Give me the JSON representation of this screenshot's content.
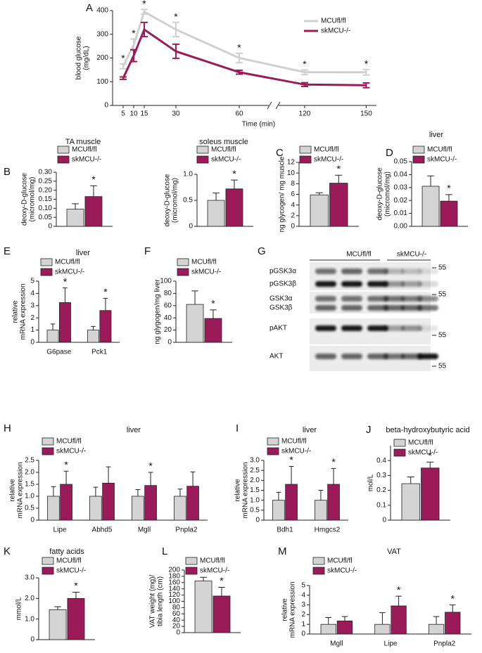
{
  "chart_data": [
    {
      "type": "line",
      "panel": "A",
      "y_label": [
        "blood glucose",
        "(mg/dL)"
      ],
      "x_label": "Time (min)",
      "x": [
        5,
        10,
        15,
        30,
        60,
        120,
        150
      ],
      "xlim": [
        0,
        155
      ],
      "xticks": [
        5,
        10,
        15,
        30,
        60,
        120,
        150
      ],
      "xbreak": [
        60,
        120
      ],
      "ylim": [
        0,
        400
      ],
      "yticks": [
        0,
        100,
        200,
        300,
        400
      ],
      "series": [
        {
          "name": "MCUfl/fl",
          "color": "#d0d0d0",
          "values": [
            165,
            255,
            395,
            320,
            200,
            140,
            140
          ],
          "errors": [
            10,
            25,
            10,
            30,
            20,
            10,
            12
          ]
        },
        {
          "name": "skMCU-/-",
          "color": "#9b1b5a",
          "values": [
            115,
            210,
            320,
            228,
            140,
            88,
            85
          ],
          "errors": [
            5,
            25,
            30,
            30,
            8,
            8,
            10
          ]
        }
      ],
      "significance": [
        "*",
        "*",
        "*",
        "*",
        "*",
        "*",
        "*"
      ]
    },
    {
      "type": "bar",
      "panel": "B",
      "title": "TA muscle",
      "y_label": [
        "deoxy-D-glucose",
        "(micromol/mg)"
      ],
      "categories": [
        null
      ],
      "ylim": [
        0,
        0.3
      ],
      "yticks": [
        0,
        0.05,
        {
          "value": 0.1,
          "label": "0.10"
        },
        0.15,
        {
          "value": 0.2,
          "label": "0.20"
        },
        0.25,
        {
          "value": 0.3,
          "label": "0.30"
        }
      ],
      "series": [
        {
          "name": "MCUfl/fl",
          "color": "#d4d4d4",
          "values": [
            0.095
          ],
          "errors": [
            0.03
          ]
        },
        {
          "name": "skMCU-/-",
          "color": "#9b1b5a",
          "values": [
            0.165
          ],
          "errors": [
            0.06
          ]
        }
      ],
      "significance": [
        "*"
      ]
    },
    {
      "type": "bar",
      "title": "soleus muscle",
      "y_label": [
        "deoxy-D-glucose",
        "(micromol/mg)"
      ],
      "categories": [
        null
      ],
      "ylim": [
        0,
        1
      ],
      "yticks": [
        0,
        0.5,
        {
          "value": 1,
          "label": "1.0"
        }
      ],
      "series": [
        {
          "name": "MCUfl/fl",
          "color": "#d4d4d4",
          "values": [
            0.5
          ],
          "errors": [
            0.14
          ]
        },
        {
          "name": "skMCU-/-",
          "color": "#9b1b5a",
          "values": [
            0.72
          ],
          "errors": [
            0.17
          ]
        }
      ],
      "significance": [
        "*"
      ]
    },
    {
      "type": "bar",
      "panel": "C",
      "y_label": "ng glycogen/ mg muscle",
      "categories": [
        null
      ],
      "ylim": [
        0,
        12
      ],
      "yticks": [
        0,
        2,
        4,
        6,
        8,
        10,
        12
      ],
      "series": [
        {
          "name": "MCUfl/fl",
          "color": "#d4d4d4",
          "values": [
            5.9
          ],
          "errors": [
            0.4
          ]
        },
        {
          "name": "skMCU-/-",
          "color": "#9b1b5a",
          "values": [
            8.1
          ],
          "errors": [
            1.5
          ]
        }
      ],
      "significance": [
        "*"
      ]
    },
    {
      "type": "bar",
      "panel": "D",
      "title": "liver",
      "y_label": [
        "deoxy-D-glucose",
        "(micromol/mg)"
      ],
      "categories": [
        null
      ],
      "ylim": [
        0,
        0.05
      ],
      "yticks": [
        {
          "value": 0,
          "label": "0.00"
        },
        0.01,
        0.02,
        0.03,
        0.04,
        0.05
      ],
      "series": [
        {
          "name": "MCUfl/fl",
          "color": "#d4d4d4",
          "values": [
            0.031
          ],
          "errors": [
            0.008
          ]
        },
        {
          "name": "skMCU-/-",
          "color": "#9b1b5a",
          "values": [
            0.0195
          ],
          "errors": [
            0.005
          ]
        }
      ],
      "significance": [
        "*"
      ]
    },
    {
      "type": "bar",
      "panel": "E",
      "title": "liver",
      "y_label": [
        "relative",
        "mRNA expression"
      ],
      "categories": [
        "G6pase",
        "Pck1"
      ],
      "ylim": [
        0,
        5
      ],
      "yticks": [
        0,
        1,
        2,
        3,
        4,
        5
      ],
      "series": [
        {
          "name": "MCUfl/fl",
          "color": "#d4d4d4",
          "values": [
            1,
            1
          ],
          "errors": [
            0.5,
            0.3
          ]
        },
        {
          "name": "skMCU-/-",
          "color": "#9b1b5a",
          "values": [
            3.25,
            2.6
          ],
          "errors": [
            1.2,
            1.0
          ]
        }
      ],
      "significance": [
        "*",
        "*"
      ]
    },
    {
      "type": "bar",
      "panel": "F",
      "y_label": "ng glygogen/mg liver",
      "categories": [
        null
      ],
      "ylim": [
        0,
        100
      ],
      "yticks": [
        0,
        20,
        40,
        60,
        80,
        100
      ],
      "series": [
        {
          "name": "MCUfl/fl",
          "color": "#d4d4d4",
          "values": [
            62
          ],
          "errors": [
            22
          ]
        },
        {
          "name": "skMCU-/-",
          "color": "#9b1b5a",
          "values": [
            39
          ],
          "errors": [
            14
          ]
        }
      ],
      "significance": [
        "*"
      ]
    },
    {
      "type": "bar",
      "panel": "H",
      "title": "liver",
      "y_label": [
        "relative",
        "mRNA expression"
      ],
      "categories": [
        "Lipe",
        "Abhd5",
        "Mgll",
        "Pnpla2"
      ],
      "ylim": [
        0,
        2.5
      ],
      "yticks": [
        0,
        0.5,
        {
          "value": 1,
          "label": "1.0"
        },
        1.5,
        {
          "value": 2,
          "label": "2.0"
        },
        2.5
      ],
      "series": [
        {
          "name": "MCUfl/fl",
          "color": "#d4d4d4",
          "values": [
            1,
            1,
            1,
            1
          ],
          "errors": [
            0.4,
            0.38,
            0.28,
            0.3
          ]
        },
        {
          "name": "skMCU-/-",
          "color": "#9b1b5a",
          "values": [
            1.5,
            1.55,
            1.45,
            1.42
          ],
          "errors": [
            0.55,
            0.68,
            0.55,
            0.6
          ]
        }
      ],
      "significance": [
        "*",
        null,
        "*",
        null
      ]
    },
    {
      "type": "bar",
      "panel": "I",
      "title": "liver",
      "y_label": [
        "relative",
        "mRNA expression"
      ],
      "categories": [
        "Bdh1",
        "Hmgcs2"
      ],
      "ylim": [
        0,
        3
      ],
      "yticks": [
        0,
        0.5,
        {
          "value": 1,
          "label": "1.0"
        },
        1.5,
        {
          "value": 2,
          "label": "2.0"
        },
        2.5,
        {
          "value": 3,
          "label": "3.0"
        }
      ],
      "series": [
        {
          "name": "MCUfl/fl",
          "color": "#d4d4d4",
          "values": [
            1,
            1
          ],
          "errors": [
            0.4,
            0.5
          ]
        },
        {
          "name": "skMCU-/-",
          "color": "#9b1b5a",
          "values": [
            1.8,
            1.8
          ],
          "errors": [
            0.9,
            0.8
          ]
        }
      ],
      "significance": [
        "*",
        "*"
      ]
    },
    {
      "type": "bar",
      "panel": "J",
      "title": "beta-hydroxybutyric acid",
      "y_label": "mol/L",
      "categories": [
        null
      ],
      "ylim": [
        0,
        0.5
      ],
      "yticks": [
        0,
        0.1,
        0.2,
        0.3,
        0.4
      ],
      "series": [
        {
          "name": "MCUfl/fl",
          "color": "#d4d4d4",
          "values": [
            0.245
          ],
          "errors": [
            0.045
          ]
        },
        {
          "name": "skMCU-/-",
          "color": "#9b1b5a",
          "values": [
            0.35
          ],
          "errors": [
            0.04
          ]
        }
      ],
      "significance": [
        "*"
      ]
    },
    {
      "type": "bar",
      "panel": "K",
      "title": "fatty acids",
      "y_label": "mmol/L",
      "categories": [
        null
      ],
      "ylim": [
        0,
        3
      ],
      "yticks": [
        0,
        {
          "value": 1,
          "label": "1.0"
        },
        {
          "value": 2,
          "label": "2.0"
        },
        {
          "value": 3,
          "label": "3.0"
        }
      ],
      "series": [
        {
          "name": "MCUfl/fl",
          "color": "#d4d4d4",
          "values": [
            1.45
          ],
          "errors": [
            0.15
          ]
        },
        {
          "name": "skMCU-/-",
          "color": "#9b1b5a",
          "values": [
            2.0
          ],
          "errors": [
            0.3
          ]
        }
      ],
      "significance": [
        "*"
      ]
    },
    {
      "type": "bar",
      "panel": "L",
      "y_label": [
        "VAT weight (mg)/",
        "tibia length (cm)"
      ],
      "categories": [
        null
      ],
      "ylim": [
        0,
        200
      ],
      "yticks": [
        0,
        20,
        40,
        60,
        80,
        100,
        120,
        140,
        160,
        180,
        200
      ],
      "series": [
        {
          "name": "MCUfl/fl",
          "color": "#d4d4d4",
          "values": [
            165
          ],
          "errors": [
            12
          ]
        },
        {
          "name": "skMCU-/-",
          "color": "#9b1b5a",
          "values": [
            117
          ],
          "errors": [
            28
          ]
        }
      ],
      "significance": [
        "*"
      ]
    },
    {
      "type": "bar",
      "panel": "M",
      "title": "VAT",
      "y_label": [
        "relative",
        "mRNA expression"
      ],
      "categories": [
        "Mgll",
        "Lipe",
        "Pnpla2"
      ],
      "ylim": [
        0,
        5
      ],
      "yticks": [
        0,
        1,
        2,
        3,
        4,
        5
      ],
      "series": [
        {
          "name": "MCUfl/fl",
          "color": "#d4d4d4",
          "values": [
            1,
            1,
            1
          ],
          "errors": [
            0.7,
            1.2,
            0.8
          ]
        },
        {
          "name": "skMCU-/-",
          "color": "#9b1b5a",
          "values": [
            1.35,
            2.9,
            2.25
          ],
          "errors": [
            0.45,
            1.0,
            0.75
          ]
        }
      ],
      "significance": [
        null,
        "*",
        "*"
      ]
    }
  ],
  "blot": {
    "panel": "G",
    "groups": [
      "MCUfl/fl",
      "skMCU-/-"
    ],
    "rows": [
      "pGSK3α",
      "pGSK3β",
      "GSK3α",
      "GSK3β",
      "pAKT",
      "AKT"
    ],
    "markers": [
      "55",
      "55",
      "55",
      "55"
    ]
  }
}
